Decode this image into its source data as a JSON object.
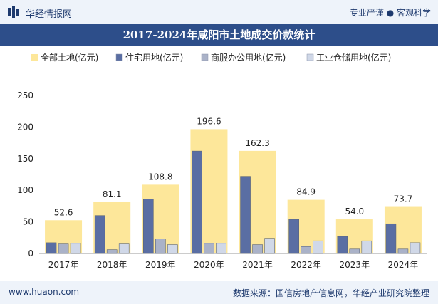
{
  "header": {
    "brand": "华经情报网",
    "tagline": "专业严谨 ● 客观科学"
  },
  "footer": {
    "site": "www.huaon.com",
    "source": "数据来源：国信房地产信息网，华经产业研究院整理"
  },
  "colors": {
    "total": "#fde79a",
    "residential": "#5a6ea3",
    "commercial": "#aab2c8",
    "industrial": "#d0d8e8",
    "title_bg": "#2d4e8a",
    "brand": "#1e3a6e"
  },
  "chart_data": {
    "type": "bar",
    "title": "2017-2024年咸阳市土地成交价款统计",
    "categories": [
      "2017年",
      "2018年",
      "2019年",
      "2020年",
      "2021年",
      "2022年",
      "2023年",
      "2024年"
    ],
    "series": [
      {
        "name": "全部土地(亿元)",
        "values": [
          52.6,
          81.1,
          108.8,
          196.6,
          162.3,
          84.9,
          54.0,
          73.7
        ],
        "labels": [
          "52.6",
          "81.1",
          "108.8",
          "196.6",
          "162.3",
          "84.9",
          "54.0",
          "73.7"
        ]
      },
      {
        "name": "住宅用地(亿元)",
        "values": [
          17,
          60,
          86,
          162,
          122,
          54,
          27,
          47
        ]
      },
      {
        "name": "商服办公用地(亿元)",
        "values": [
          15,
          6,
          23,
          16,
          14,
          11,
          7,
          7
        ]
      },
      {
        "name": "工业仓储用地(亿元)",
        "values": [
          16,
          15,
          14,
          16,
          24,
          20,
          20,
          17
        ]
      }
    ],
    "ylim": [
      0,
      250
    ],
    "yticks": [
      "0",
      "50",
      "100",
      "150",
      "200",
      "250"
    ],
    "legend_position": "top",
    "grid": false
  }
}
